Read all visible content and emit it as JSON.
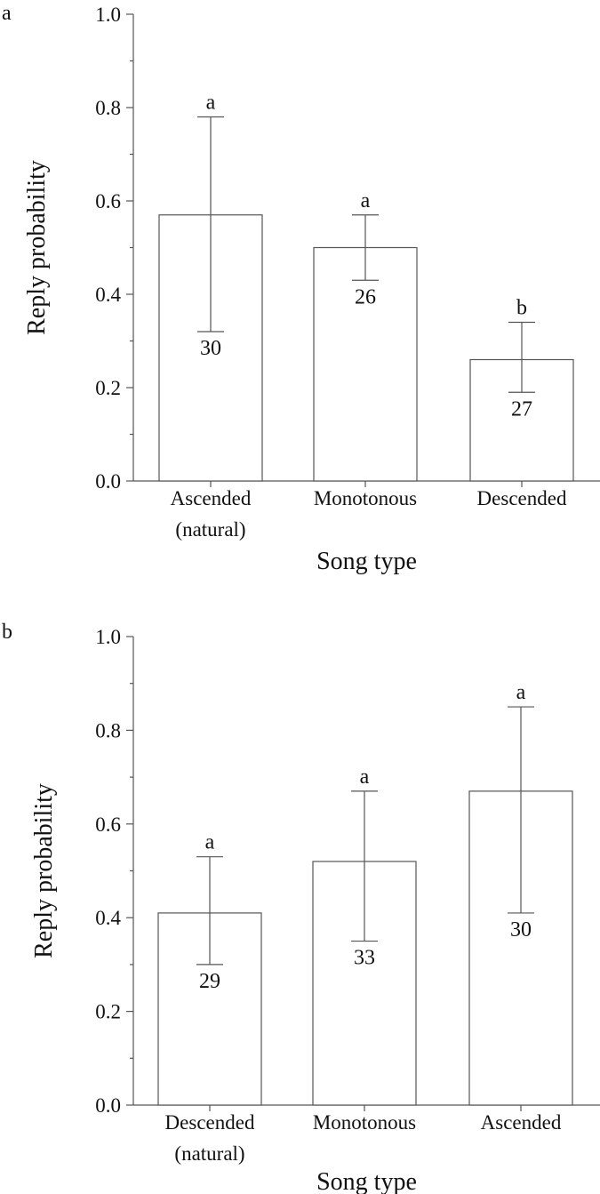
{
  "chart_data": [
    {
      "type": "bar",
      "panel": "a",
      "xlabel": "Song type",
      "ylabel": "Reply probability",
      "ylim": [
        0,
        1.0
      ],
      "yticks": [
        "0.0",
        "0.2",
        "0.4",
        "0.6",
        "0.8",
        "1.0"
      ],
      "categories": [
        [
          "Ascended",
          "(natural)"
        ],
        [
          "Monotonous"
        ],
        [
          "Descended"
        ]
      ],
      "values": [
        0.57,
        0.5,
        0.26
      ],
      "error_low": [
        0.32,
        0.43,
        0.19
      ],
      "error_high": [
        0.78,
        0.57,
        0.34
      ],
      "significance": [
        "a",
        "a",
        "b"
      ],
      "n": [
        "30",
        "26",
        "27"
      ],
      "bar_fill": "#ffffff",
      "line_color": "#555555"
    },
    {
      "type": "bar",
      "panel": "b",
      "xlabel": "Song type",
      "ylabel": "Reply probability",
      "ylim": [
        0,
        1.0
      ],
      "yticks": [
        "0.0",
        "0.2",
        "0.4",
        "0.6",
        "0.8",
        "1.0"
      ],
      "categories": [
        [
          "Descended",
          "(natural)"
        ],
        [
          "Monotonous"
        ],
        [
          "Ascended"
        ]
      ],
      "values": [
        0.41,
        0.52,
        0.67
      ],
      "error_low": [
        0.3,
        0.35,
        0.41
      ],
      "error_high": [
        0.53,
        0.67,
        0.85
      ],
      "significance": [
        "a",
        "a",
        "a"
      ],
      "n": [
        "29",
        "33",
        "30"
      ],
      "bar_fill": "#ffffff",
      "line_color": "#555555"
    }
  ]
}
